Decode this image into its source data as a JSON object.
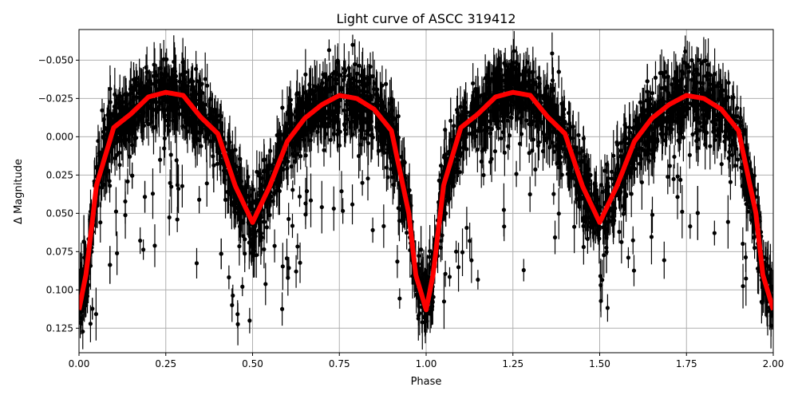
{
  "chart_data": {
    "type": "scatter",
    "title": "Light curve of ASCC 319412",
    "xlabel": "Phase",
    "ylabel": "Δ Magnitude",
    "xlim": [
      0,
      2
    ],
    "ylim": [
      0.141,
      -0.07
    ],
    "y_inverted": true,
    "grid": true,
    "xticks": [
      "0.00",
      "0.25",
      "0.50",
      "0.75",
      "1.00",
      "1.25",
      "1.50",
      "1.75",
      "2.00"
    ],
    "xtick_values": [
      0,
      0.25,
      0.5,
      0.75,
      1,
      1.25,
      1.5,
      1.75,
      2
    ],
    "yticks": [
      "−0.050",
      "−0.025",
      "0.000",
      "0.025",
      "0.050",
      "0.075",
      "0.100",
      "0.125"
    ],
    "ytick_values": [
      -0.05,
      -0.025,
      0,
      0.025,
      0.05,
      0.075,
      0.1,
      0.125
    ],
    "colors": {
      "points": "#000000",
      "model": "#ff0000",
      "grid": "#b0b0b0"
    },
    "series": [
      {
        "type": "errorbar-scatter",
        "color": "#000000",
        "description_note": ""
      },
      {
        "type": "line",
        "color": "#ff0000",
        "x": [
          0,
          0.02,
          0.04,
          0.05,
          0.1,
          0.15,
          0.2,
          0.25,
          0.3,
          0.35,
          0.4,
          0.45,
          0.5,
          0.55,
          0.6,
          0.65,
          0.7,
          0.75,
          0.8,
          0.85,
          0.9,
          0.95,
          0.97,
          1.0,
          1.02,
          1.04,
          1.05,
          1.1,
          1.15,
          1.2,
          1.25,
          1.3,
          1.35,
          1.4,
          1.45,
          1.5,
          1.55,
          1.6,
          1.65,
          1.7,
          1.75,
          1.8,
          1.85,
          1.9,
          1.95,
          1.97,
          2.0
        ],
        "y": [
          0.113,
          0.09,
          0.052,
          0.032,
          -0.006,
          -0.015,
          -0.026,
          -0.029,
          -0.027,
          -0.013,
          -0.002,
          0.032,
          0.056,
          0.032,
          0.003,
          -0.012,
          -0.021,
          -0.027,
          -0.025,
          -0.018,
          -0.004,
          0.05,
          0.09,
          0.113,
          0.09,
          0.052,
          0.032,
          -0.006,
          -0.015,
          -0.026,
          -0.029,
          -0.027,
          -0.013,
          -0.002,
          0.032,
          0.056,
          0.032,
          0.003,
          -0.012,
          -0.021,
          -0.027,
          -0.025,
          -0.018,
          -0.004,
          0.05,
          0.09,
          0.113
        ]
      }
    ]
  }
}
